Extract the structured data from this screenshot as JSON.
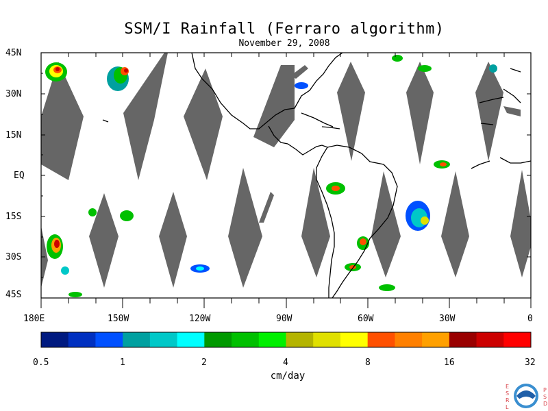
{
  "title": "SSM/I Rainfall (Ferraro algorithm)",
  "date": "November 29, 2008",
  "lat_labels": [
    "45N",
    "30N",
    "15N",
    "EQ",
    "15S",
    "30S",
    "45S"
  ],
  "lon_labels": [
    "180E",
    "150W",
    "120W",
    "90W",
    "60W",
    "30W",
    "0"
  ],
  "colorbar": {
    "colors": [
      "#001a80",
      "#0030c0",
      "#0050ff",
      "#00a0a0",
      "#00c8c8",
      "#00ffff",
      "#009900",
      "#00c000",
      "#00f000",
      "#b4b400",
      "#e0e000",
      "#ffff00",
      "#ff5000",
      "#ff8000",
      "#ffa000",
      "#990000",
      "#cc0000",
      "#ff0000"
    ],
    "tick_labels": [
      "0.5",
      "1",
      "2",
      "4",
      "8",
      "16",
      "32"
    ],
    "units": "cm/day"
  },
  "logo": {
    "left_letters": [
      "E",
      "S",
      "R",
      "L"
    ],
    "right_letters": [
      "P",
      "S",
      "D"
    ],
    "name": "noaa-logo"
  }
}
